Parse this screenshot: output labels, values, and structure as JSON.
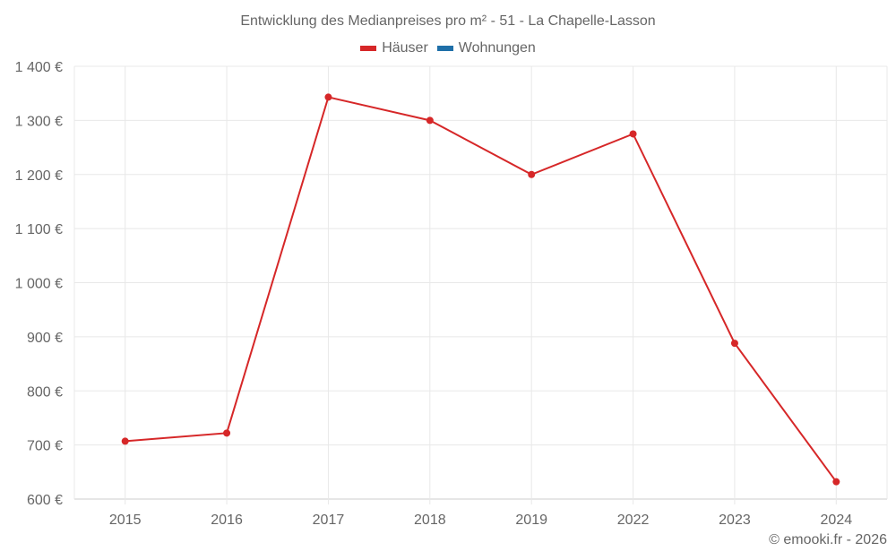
{
  "chart_data": {
    "type": "line",
    "title": "Entwicklung des Medianpreises pro m² - 51 - La Chapelle-Lasson",
    "categories": [
      "2015",
      "2016",
      "2017",
      "2018",
      "2019",
      "2022",
      "2023",
      "2024"
    ],
    "series": [
      {
        "name": "Häuser",
        "color": "#d62728",
        "values": [
          707,
          722,
          1343,
          1300,
          1200,
          1275,
          888,
          632
        ]
      },
      {
        "name": "Wohnungen",
        "color": "#1f6fa8",
        "values": []
      }
    ],
    "xlabel": "",
    "ylabel": "",
    "ylim": [
      600,
      1400
    ],
    "yticks": [
      600,
      700,
      800,
      900,
      1000,
      1100,
      1200,
      1300,
      1400
    ],
    "ytick_labels": [
      "600 €",
      "700 €",
      "800 €",
      "900 €",
      "1 000 €",
      "1 100 €",
      "1 200 €",
      "1 300 €",
      "1 400 €"
    ],
    "grid": true,
    "legend_position": "top"
  },
  "legend": {
    "items": [
      {
        "label": "Häuser",
        "color": "#d62728"
      },
      {
        "label": "Wohnungen",
        "color": "#1f6fa8"
      }
    ]
  },
  "credit": "© emooki.fr - 2026"
}
